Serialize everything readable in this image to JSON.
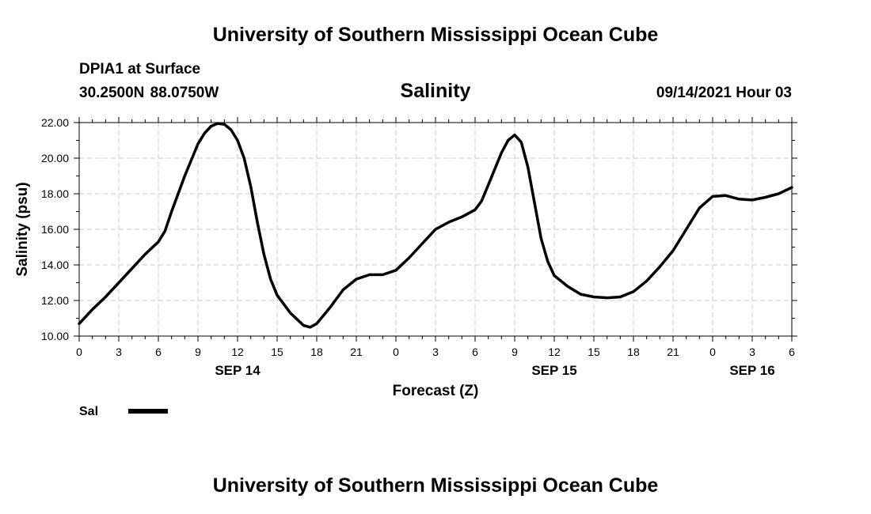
{
  "header": {
    "site_title": "University of Southern Mississippi Ocean Cube",
    "station": "DPIA1 at Surface",
    "coordinates": "30.2500N  88.0750W",
    "chart_title": "Salinity",
    "datetime": "09/14/2021 Hour 03"
  },
  "footer": {
    "site_title": "University of Southern Mississippi Ocean Cube"
  },
  "chart_data": {
    "type": "line",
    "xlabel": "Forecast (Z)",
    "ylabel": "Salinity (psu)",
    "xlim": [
      0,
      54
    ],
    "ylim": [
      10,
      22
    ],
    "grid": true,
    "x_tick_hours": [
      0,
      3,
      6,
      9,
      12,
      15,
      18,
      21,
      24,
      27,
      30,
      33,
      36,
      39,
      42,
      45,
      48,
      51,
      54
    ],
    "x_tick_labels": [
      "0",
      "3",
      "6",
      "9",
      "12",
      "15",
      "18",
      "21",
      "0",
      "3",
      "6",
      "9",
      "12",
      "15",
      "18",
      "21",
      "0",
      "3",
      "6"
    ],
    "y_ticks": [
      10,
      12,
      14,
      16,
      18,
      20,
      22
    ],
    "y_tick_labels": [
      "10.00",
      "12.00",
      "14.00",
      "16.00",
      "18.00",
      "20.00",
      "22.00"
    ],
    "date_labels": [
      {
        "hour": 12,
        "label": "SEP 14"
      },
      {
        "hour": 36,
        "label": "SEP 15"
      },
      {
        "hour": 51,
        "label": "SEP 16"
      }
    ],
    "legend": {
      "placement": "bottom-left",
      "entries": [
        {
          "label": "Sal",
          "color": "#000000"
        }
      ]
    },
    "series": [
      {
        "name": "Sal",
        "color": "#000000",
        "points": [
          [
            0,
            10.7
          ],
          [
            1,
            11.5
          ],
          [
            2,
            12.2
          ],
          [
            3,
            13.0
          ],
          [
            4,
            13.8
          ],
          [
            5,
            14.6
          ],
          [
            6,
            15.3
          ],
          [
            6.5,
            15.9
          ],
          [
            7,
            17.0
          ],
          [
            8,
            19.0
          ],
          [
            9,
            20.8
          ],
          [
            9.5,
            21.4
          ],
          [
            10,
            21.8
          ],
          [
            10.5,
            21.95
          ],
          [
            11,
            21.9
          ],
          [
            11.5,
            21.6
          ],
          [
            12,
            21.0
          ],
          [
            12.5,
            20.0
          ],
          [
            13,
            18.4
          ],
          [
            13.5,
            16.4
          ],
          [
            14,
            14.6
          ],
          [
            14.5,
            13.2
          ],
          [
            15,
            12.3
          ],
          [
            16,
            11.3
          ],
          [
            17,
            10.6
          ],
          [
            17.5,
            10.5
          ],
          [
            18,
            10.7
          ],
          [
            19,
            11.6
          ],
          [
            20,
            12.6
          ],
          [
            21,
            13.2
          ],
          [
            22,
            13.45
          ],
          [
            23,
            13.45
          ],
          [
            24,
            13.7
          ],
          [
            25,
            14.4
          ],
          [
            26,
            15.2
          ],
          [
            27,
            16.0
          ],
          [
            28,
            16.4
          ],
          [
            29,
            16.7
          ],
          [
            30,
            17.1
          ],
          [
            30.5,
            17.6
          ],
          [
            31,
            18.5
          ],
          [
            32,
            20.3
          ],
          [
            32.5,
            21.0
          ],
          [
            33,
            21.3
          ],
          [
            33.5,
            20.9
          ],
          [
            34,
            19.5
          ],
          [
            34.5,
            17.5
          ],
          [
            35,
            15.5
          ],
          [
            35.5,
            14.2
          ],
          [
            36,
            13.4
          ],
          [
            37,
            12.8
          ],
          [
            38,
            12.35
          ],
          [
            39,
            12.2
          ],
          [
            40,
            12.15
          ],
          [
            41,
            12.2
          ],
          [
            42,
            12.5
          ],
          [
            43,
            13.1
          ],
          [
            44,
            13.9
          ],
          [
            45,
            14.8
          ],
          [
            46,
            16.0
          ],
          [
            47,
            17.2
          ],
          [
            48,
            17.85
          ],
          [
            49,
            17.9
          ],
          [
            50,
            17.7
          ],
          [
            51,
            17.65
          ],
          [
            52,
            17.8
          ],
          [
            53,
            18.0
          ],
          [
            54,
            18.35
          ]
        ]
      }
    ]
  }
}
